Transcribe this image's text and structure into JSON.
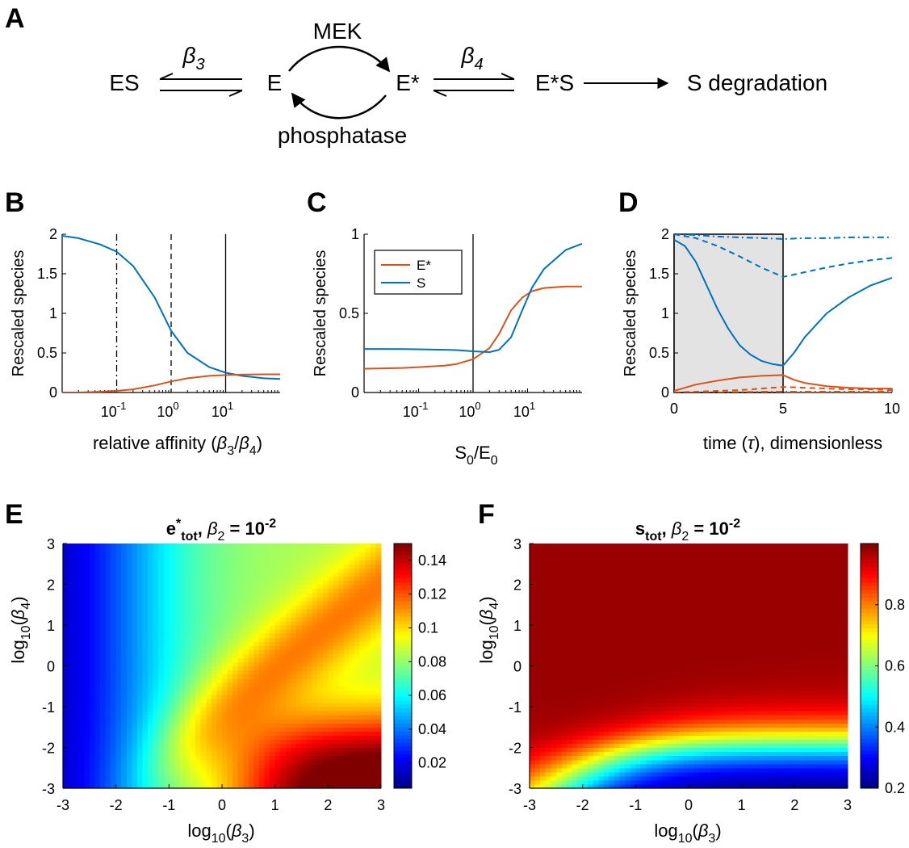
{
  "panels": {
    "A": {
      "letter": "A",
      "nodes": {
        "es": "ES",
        "e": "E",
        "estar": "E*",
        "estar_s": "E*S",
        "deg": "S degradation"
      },
      "labels": {
        "beta3": "β",
        "beta3_sub": "3",
        "beta4": "β",
        "beta4_sub": "4",
        "mek": "MEK",
        "phosphatase": "phosphatase"
      }
    },
    "B": {
      "letter": "B"
    },
    "C": {
      "letter": "C"
    },
    "D": {
      "letter": "D"
    },
    "E": {
      "letter": "E"
    },
    "F": {
      "letter": "F"
    }
  },
  "chart_data": [
    {
      "panel": "B",
      "type": "line",
      "xscale": "log",
      "xlim": [
        0.01,
        100
      ],
      "ylim": [
        0,
        2
      ],
      "xticks": [
        "10^-1",
        "10^0",
        "10^1"
      ],
      "yticks": [
        "0",
        "0.5",
        "1",
        "1.5",
        "2"
      ],
      "ylabel": "Rescaled species",
      "xlabel": "relative affinity (β3/β4)",
      "vlines": [
        {
          "x": 0.1,
          "style": "dashdot"
        },
        {
          "x": 1,
          "style": "dashed"
        },
        {
          "x": 10,
          "style": "solid"
        }
      ],
      "series": [
        {
          "color": "#0072BD",
          "x": [
            0.01,
            0.02,
            0.05,
            0.1,
            0.2,
            0.5,
            1,
            2,
            5,
            10,
            20,
            50,
            100
          ],
          "y": [
            1.98,
            1.95,
            1.87,
            1.78,
            1.6,
            1.2,
            0.78,
            0.5,
            0.32,
            0.25,
            0.21,
            0.18,
            0.17
          ]
        },
        {
          "color": "#D95319",
          "x": [
            0.01,
            0.02,
            0.05,
            0.1,
            0.2,
            0.5,
            1,
            2,
            5,
            10,
            20,
            50,
            100
          ],
          "y": [
            0.0,
            0.0,
            0.01,
            0.02,
            0.04,
            0.09,
            0.14,
            0.18,
            0.21,
            0.22,
            0.225,
            0.23,
            0.23
          ]
        }
      ]
    },
    {
      "panel": "C",
      "type": "line",
      "xscale": "log",
      "xlim": [
        0.01,
        100
      ],
      "ylim": [
        0,
        1
      ],
      "xticks": [
        "10^-1",
        "10^0",
        "10^1"
      ],
      "yticks": [
        "0",
        "0.5",
        "1"
      ],
      "ylabel": "Rescaled species",
      "xlabel": "S0/E0",
      "vlines": [
        {
          "x": 1,
          "style": "solid"
        }
      ],
      "legend": {
        "position": "top-left",
        "entries": [
          "E*",
          "S"
        ]
      },
      "series": [
        {
          "name": "E*",
          "color": "#D95319",
          "x": [
            0.01,
            0.05,
            0.1,
            0.3,
            0.5,
            1,
            2,
            3,
            5,
            8,
            12,
            20,
            50,
            100
          ],
          "y": [
            0.15,
            0.155,
            0.16,
            0.17,
            0.18,
            0.21,
            0.28,
            0.37,
            0.52,
            0.6,
            0.64,
            0.66,
            0.67,
            0.67
          ]
        },
        {
          "name": "S",
          "color": "#0072BD",
          "x": [
            0.01,
            0.05,
            0.1,
            0.3,
            0.5,
            1,
            2,
            3,
            5,
            8,
            12,
            20,
            50,
            100
          ],
          "y": [
            0.275,
            0.274,
            0.273,
            0.27,
            0.268,
            0.26,
            0.255,
            0.27,
            0.35,
            0.52,
            0.66,
            0.78,
            0.9,
            0.94
          ]
        }
      ]
    },
    {
      "panel": "D",
      "type": "line",
      "xlim": [
        0,
        10
      ],
      "ylim": [
        0,
        2
      ],
      "xticks": [
        "0",
        "5",
        "10"
      ],
      "yticks": [
        "0",
        "0.5",
        "1",
        "1.5",
        "2"
      ],
      "ylabel": "Rescaled species",
      "xlabel": "time (τ), dimensionless",
      "shaded_region": [
        0,
        5
      ],
      "series": [
        {
          "color": "#0072BD",
          "style": "solid",
          "x": [
            0,
            0.5,
            1,
            1.5,
            2,
            2.5,
            3,
            3.5,
            4,
            4.5,
            5,
            5.5,
            6,
            7,
            8,
            9,
            10
          ],
          "y": [
            1.93,
            1.85,
            1.65,
            1.35,
            1.05,
            0.8,
            0.6,
            0.48,
            0.4,
            0.36,
            0.34,
            0.5,
            0.7,
            1.0,
            1.2,
            1.35,
            1.45
          ]
        },
        {
          "color": "#0072BD",
          "style": "dashed",
          "x": [
            0,
            1,
            2,
            3,
            4,
            5,
            6,
            7,
            8,
            9,
            10
          ],
          "y": [
            2.0,
            1.95,
            1.85,
            1.72,
            1.58,
            1.46,
            1.52,
            1.58,
            1.63,
            1.67,
            1.7
          ]
        },
        {
          "color": "#0072BD",
          "style": "dashdot",
          "x": [
            0,
            1,
            2,
            3,
            4,
            5,
            6,
            7,
            8,
            9,
            10
          ],
          "y": [
            2.0,
            1.99,
            1.97,
            1.96,
            1.95,
            1.94,
            1.95,
            1.95,
            1.96,
            1.96,
            1.96
          ]
        },
        {
          "color": "#D95319",
          "style": "solid",
          "x": [
            0,
            0.5,
            1,
            2,
            3,
            4,
            5,
            5.5,
            6,
            7,
            8,
            9,
            10
          ],
          "y": [
            0.02,
            0.06,
            0.1,
            0.15,
            0.19,
            0.21,
            0.22,
            0.16,
            0.12,
            0.08,
            0.06,
            0.05,
            0.05
          ]
        },
        {
          "color": "#D95319",
          "style": "dashed",
          "x": [
            0,
            1,
            2,
            3,
            4,
            5,
            6,
            7,
            8,
            9,
            10
          ],
          "y": [
            0.0,
            0.01,
            0.02,
            0.03,
            0.05,
            0.07,
            0.06,
            0.05,
            0.04,
            0.04,
            0.03
          ]
        },
        {
          "color": "#D95319",
          "style": "dashdot",
          "x": [
            0,
            2,
            4,
            5,
            6,
            8,
            10
          ],
          "y": [
            0.0,
            0.0,
            0.01,
            0.01,
            0.01,
            0.01,
            0.01
          ]
        }
      ]
    },
    {
      "panel": "E",
      "type": "heatmap",
      "title": "e*tot, β2 = 10^-2",
      "xlabel": "log10(β3)",
      "ylabel": "log10(β4)",
      "xlim": [
        -3,
        3
      ],
      "ylim": [
        -3,
        3
      ],
      "xticks": [
        "-3",
        "-2",
        "-1",
        "0",
        "1",
        "2",
        "3"
      ],
      "yticks": [
        "-3",
        "-2",
        "-1",
        "0",
        "1",
        "2",
        "3"
      ],
      "colorbar": {
        "min": 0.005,
        "max": 0.15,
        "ticks": [
          "0.02",
          "0.04",
          "0.06",
          "0.08",
          "0.1",
          "0.12",
          "0.14"
        ]
      },
      "colormap": "jet"
    },
    {
      "panel": "F",
      "type": "heatmap",
      "title": "stot, β2 = 10^-2",
      "xlabel": "log10(β3)",
      "ylabel": "log10(β4)",
      "xlim": [
        -3,
        3
      ],
      "ylim": [
        -3,
        3
      ],
      "xticks": [
        "-3",
        "-2",
        "-1",
        "0",
        "1",
        "2",
        "3"
      ],
      "yticks": [
        "-3",
        "-2",
        "-1",
        "0",
        "1",
        "2",
        "3"
      ],
      "colorbar": {
        "min": 0.2,
        "max": 1.0,
        "ticks": [
          "0.2",
          "0.4",
          "0.6",
          "0.8"
        ]
      },
      "colormap": "jet"
    }
  ]
}
